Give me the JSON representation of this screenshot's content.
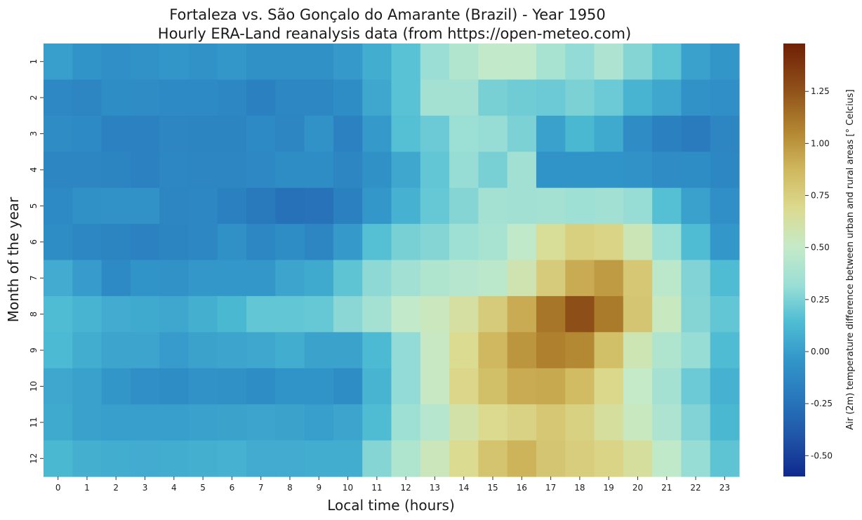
{
  "chart_data": {
    "type": "heatmap",
    "title_line1": "Fortaleza vs. São Gonçalo do Amarante (Brazil) - Year 1950",
    "title_line2": "Hourly ERA-Land reanalysis data (from https://open-meteo.com)",
    "xlabel": "Local time (hours)",
    "ylabel": "Month of the year",
    "colorbar_label": "Air (2m) temperature difference between urban and rural areas [° Celcius]",
    "x_categories": [
      "0",
      "1",
      "2",
      "3",
      "4",
      "5",
      "6",
      "7",
      "8",
      "9",
      "10",
      "11",
      "12",
      "13",
      "14",
      "15",
      "16",
      "17",
      "18",
      "19",
      "20",
      "21",
      "22",
      "23"
    ],
    "y_categories": [
      "1",
      "2",
      "3",
      "4",
      "5",
      "6",
      "7",
      "8",
      "9",
      "10",
      "11",
      "12"
    ],
    "colorbar_ticks": [
      "-0.50",
      "-0.25",
      "0.00",
      "0.25",
      "0.50",
      "0.75",
      "1.00",
      "1.25"
    ],
    "colorbar_range": [
      -0.6,
      1.48
    ],
    "colormap": "cmo.delta-like (navy → blue → cyan → pale green → khaki → brown)",
    "values": [
      [
        0.0,
        -0.05,
        -0.08,
        -0.06,
        -0.04,
        -0.06,
        -0.03,
        -0.07,
        -0.07,
        -0.07,
        -0.02,
        0.07,
        0.17,
        0.32,
        0.42,
        0.49,
        0.49,
        0.38,
        0.3,
        0.4,
        0.27,
        0.18,
        0.01,
        -0.04
      ],
      [
        -0.12,
        -0.14,
        -0.09,
        -0.1,
        -0.11,
        -0.11,
        -0.13,
        -0.17,
        -0.13,
        -0.13,
        -0.09,
        0.04,
        0.17,
        0.36,
        0.36,
        0.24,
        0.22,
        0.21,
        0.25,
        0.21,
        0.1,
        0.04,
        -0.06,
        -0.08
      ],
      [
        -0.1,
        -0.11,
        -0.16,
        -0.16,
        -0.14,
        -0.15,
        -0.15,
        -0.11,
        -0.14,
        -0.06,
        -0.16,
        -0.02,
        0.16,
        0.21,
        0.33,
        0.31,
        0.25,
        0.01,
        0.12,
        0.05,
        -0.1,
        -0.17,
        -0.2,
        -0.14
      ],
      [
        -0.14,
        -0.14,
        -0.15,
        -0.16,
        -0.13,
        -0.14,
        -0.14,
        -0.12,
        -0.09,
        -0.09,
        -0.14,
        -0.07,
        0.04,
        0.19,
        0.31,
        0.24,
        0.35,
        -0.05,
        -0.05,
        -0.05,
        -0.06,
        -0.1,
        -0.09,
        -0.13
      ],
      [
        -0.11,
        -0.07,
        -0.06,
        -0.06,
        -0.14,
        -0.13,
        -0.17,
        -0.21,
        -0.26,
        -0.25,
        -0.17,
        -0.03,
        0.09,
        0.2,
        0.27,
        0.36,
        0.35,
        0.36,
        0.34,
        0.35,
        0.31,
        0.16,
        0.01,
        -0.08
      ],
      [
        -0.09,
        -0.13,
        -0.15,
        -0.16,
        -0.15,
        -0.13,
        -0.07,
        -0.13,
        -0.09,
        -0.14,
        -0.02,
        0.16,
        0.24,
        0.27,
        0.34,
        0.38,
        0.48,
        0.66,
        0.75,
        0.72,
        0.56,
        0.33,
        0.14,
        -0.03
      ],
      [
        0.06,
        -0.01,
        -0.11,
        -0.05,
        -0.06,
        -0.03,
        -0.03,
        -0.03,
        0.03,
        0.05,
        0.18,
        0.29,
        0.35,
        0.41,
        0.44,
        0.46,
        0.58,
        0.77,
        0.92,
        0.98,
        0.79,
        0.46,
        0.26,
        0.14
      ],
      [
        0.14,
        0.1,
        0.06,
        0.05,
        0.04,
        0.08,
        0.12,
        0.19,
        0.19,
        0.2,
        0.28,
        0.36,
        0.49,
        0.54,
        0.63,
        0.77,
        0.92,
        1.12,
        1.27,
        1.1,
        0.8,
        0.53,
        0.27,
        0.19
      ],
      [
        0.13,
        0.07,
        0.03,
        0.03,
        -0.01,
        0.02,
        0.03,
        0.04,
        0.07,
        0.02,
        0.02,
        0.13,
        0.3,
        0.52,
        0.68,
        0.87,
        1.0,
        1.08,
        1.05,
        0.83,
        0.57,
        0.41,
        0.31,
        0.14
      ],
      [
        0.04,
        0.01,
        -0.04,
        -0.08,
        -0.09,
        -0.06,
        -0.07,
        -0.09,
        -0.05,
        -0.05,
        -0.09,
        0.1,
        0.3,
        0.52,
        0.71,
        0.83,
        0.92,
        0.93,
        0.85,
        0.7,
        0.5,
        0.36,
        0.21,
        0.09
      ],
      [
        0.05,
        0.01,
        0.0,
        0.0,
        0.0,
        0.01,
        0.02,
        0.03,
        0.02,
        0.0,
        0.03,
        0.14,
        0.34,
        0.44,
        0.61,
        0.69,
        0.73,
        0.79,
        0.74,
        0.64,
        0.53,
        0.4,
        0.26,
        0.12
      ],
      [
        0.12,
        0.08,
        0.07,
        0.06,
        0.07,
        0.08,
        0.09,
        0.06,
        0.06,
        0.07,
        0.07,
        0.27,
        0.41,
        0.55,
        0.68,
        0.81,
        0.89,
        0.8,
        0.76,
        0.72,
        0.64,
        0.48,
        0.31,
        0.18
      ]
    ]
  }
}
